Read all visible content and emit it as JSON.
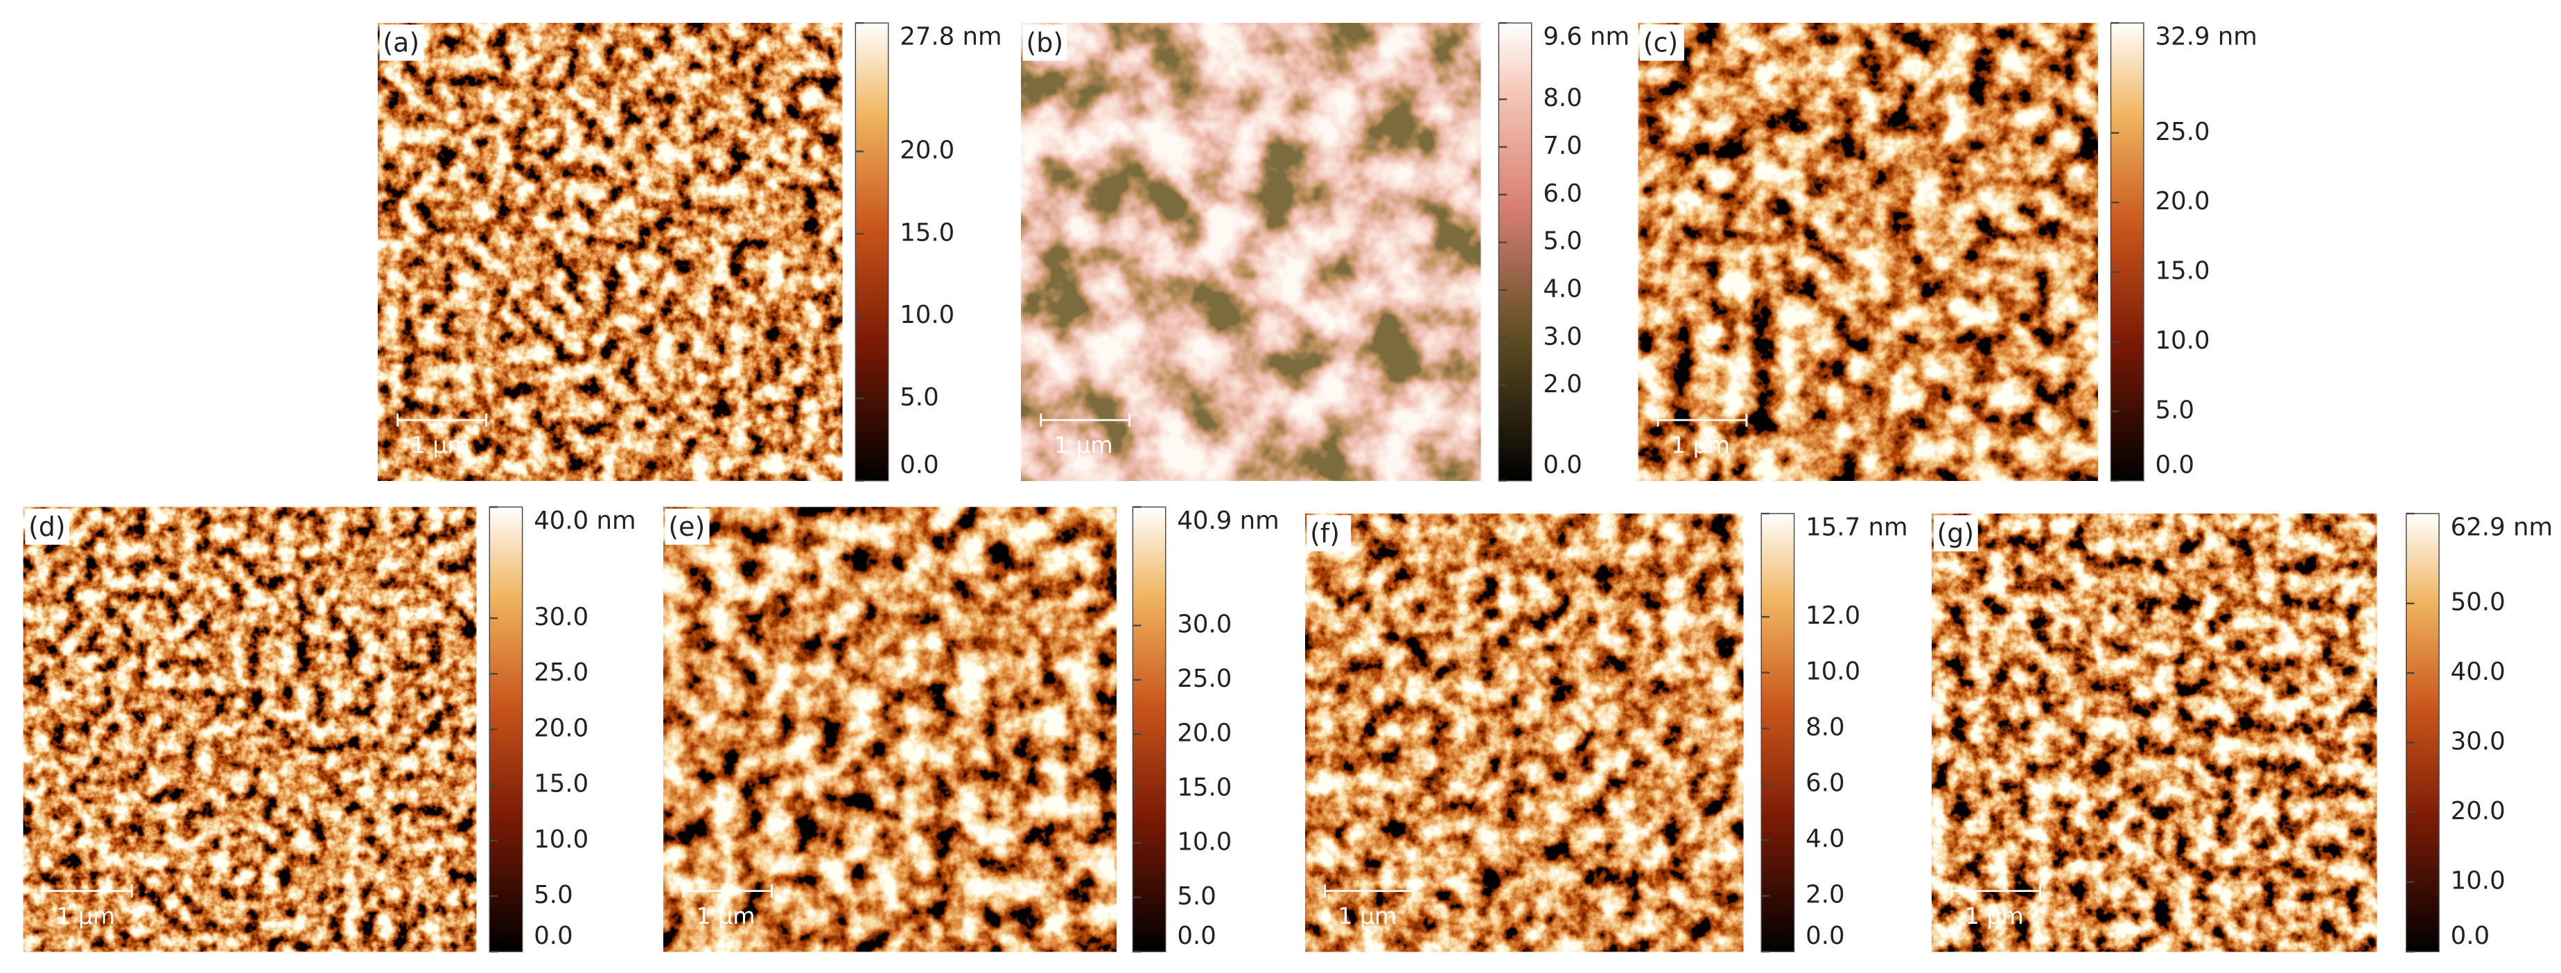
{
  "panels": [
    {
      "label": "(a)",
      "scale_bar": "1 µm",
      "colorbar": {
        "max": {
          "value": 27.8,
          "label": "27.8 nm"
        },
        "ticks": [
          {
            "value": 20,
            "label": "20.0"
          },
          {
            "value": 15,
            "label": "15.0"
          },
          {
            "value": 10,
            "label": "10.0"
          },
          {
            "value": 5,
            "label": "5.0"
          },
          {
            "value": 0,
            "label": "0.0"
          }
        ]
      }
    },
    {
      "label": "(b)",
      "scale_bar": "1 µm",
      "colorbar": {
        "max": {
          "value": 9.6,
          "label": "9.6 nm"
        },
        "ticks": [
          {
            "value": 8,
            "label": "8.0"
          },
          {
            "value": 7,
            "label": "7.0"
          },
          {
            "value": 6,
            "label": "6.0"
          },
          {
            "value": 5,
            "label": "5.0"
          },
          {
            "value": 4,
            "label": "4.0"
          },
          {
            "value": 3,
            "label": "3.0"
          },
          {
            "value": 2,
            "label": "2.0"
          },
          {
            "value": 0,
            "label": "0.0"
          }
        ]
      }
    },
    {
      "label": "(c)",
      "scale_bar": "1 µm",
      "colorbar": {
        "max": {
          "value": 32.9,
          "label": "32.9 nm"
        },
        "ticks": [
          {
            "value": 25,
            "label": "25.0"
          },
          {
            "value": 20,
            "label": "20.0"
          },
          {
            "value": 15,
            "label": "15.0"
          },
          {
            "value": 10,
            "label": "10.0"
          },
          {
            "value": 5,
            "label": "5.0"
          },
          {
            "value": 0,
            "label": "0.0"
          }
        ]
      }
    },
    {
      "label": "(d)",
      "scale_bar": "1 µm",
      "colorbar": {
        "max": {
          "value": 40.0,
          "label": "40.0 nm"
        },
        "ticks": [
          {
            "value": 30,
            "label": "30.0"
          },
          {
            "value": 25,
            "label": "25.0"
          },
          {
            "value": 20,
            "label": "20.0"
          },
          {
            "value": 15,
            "label": "15.0"
          },
          {
            "value": 10,
            "label": "10.0"
          },
          {
            "value": 5,
            "label": "5.0"
          },
          {
            "value": 0,
            "label": "0.0"
          }
        ]
      }
    },
    {
      "label": "(e)",
      "scale_bar": "1 µm",
      "colorbar": {
        "max": {
          "value": 40.9,
          "label": "40.9 nm"
        },
        "ticks": [
          {
            "value": 30,
            "label": "30.0"
          },
          {
            "value": 25,
            "label": "25.0"
          },
          {
            "value": 20,
            "label": "20.0"
          },
          {
            "value": 15,
            "label": "15.0"
          },
          {
            "value": 10,
            "label": "10.0"
          },
          {
            "value": 5,
            "label": "5.0"
          },
          {
            "value": 0,
            "label": "0.0"
          }
        ]
      }
    },
    {
      "label": "(f)",
      "scale_bar": "1 µm",
      "colorbar": {
        "max": {
          "value": 15.7,
          "label": "15.7 nm"
        },
        "ticks": [
          {
            "value": 12,
            "label": "12.0"
          },
          {
            "value": 10,
            "label": "10.0"
          },
          {
            "value": 8,
            "label": "8.0"
          },
          {
            "value": 6,
            "label": "6.0"
          },
          {
            "value": 4,
            "label": "4.0"
          },
          {
            "value": 2,
            "label": "2.0"
          },
          {
            "value": 0,
            "label": "0.0"
          }
        ]
      }
    },
    {
      "label": "(g)",
      "scale_bar": "1 µm",
      "colorbar": {
        "max": {
          "value": 62.9,
          "label": "62.9 nm"
        },
        "ticks": [
          {
            "value": 50,
            "label": "50.0"
          },
          {
            "value": 40,
            "label": "40.0"
          },
          {
            "value": 30,
            "label": "30.0"
          },
          {
            "value": 20,
            "label": "20.0"
          },
          {
            "value": 10,
            "label": "10.0"
          },
          {
            "value": 0,
            "label": "0.0"
          }
        ]
      }
    }
  ]
}
